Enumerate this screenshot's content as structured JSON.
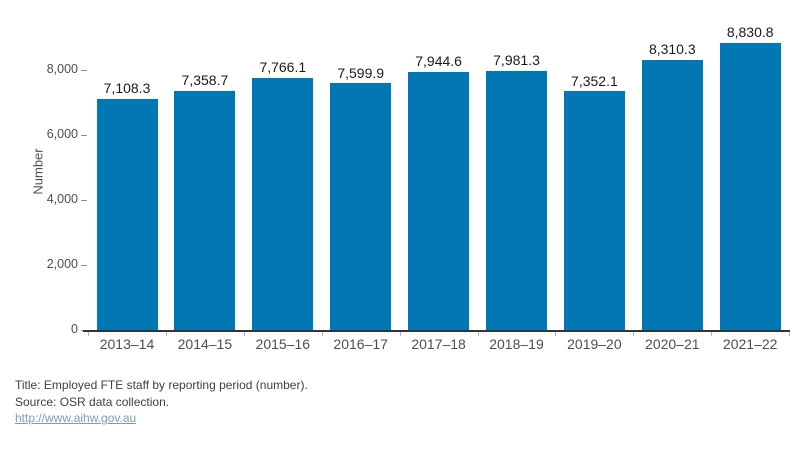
{
  "chart_data": {
    "type": "bar",
    "title": "Employed FTE staff by reporting period (number)",
    "categories": [
      "2013–14",
      "2014–15",
      "2015–16",
      "2016–17",
      "2017–18",
      "2018–19",
      "2019–20",
      "2020–21",
      "2021–22"
    ],
    "values": [
      7108.3,
      7358.7,
      7766.1,
      7599.9,
      7944.6,
      7981.3,
      7352.1,
      8310.3,
      8830.8
    ],
    "value_labels": [
      "7,108.3",
      "7,358.7",
      "7,766.1",
      "7,599.9",
      "7,944.6",
      "7,981.3",
      "7,352.1",
      "8,310.3",
      "8,830.8"
    ],
    "xlabel": "",
    "ylabel": "Number",
    "yticks": [
      0,
      2000,
      4000,
      6000,
      8000
    ],
    "ytick_labels": [
      "0",
      "2,000",
      "4,000",
      "6,000",
      "8,000"
    ],
    "ylim": [
      0,
      9400
    ],
    "grid": false,
    "legend": "none",
    "bar_color": "#0277b4"
  },
  "footer": {
    "title_note": "Title: Employed FTE staff by reporting period (number).",
    "source_note": "Source: OSR data collection.",
    "link_text": "http://www.aihw.gov.au"
  },
  "colors": {
    "bar": "#0277b4",
    "axis_text": "#4e4e4e",
    "value_text": "#1a1a1a",
    "footer_text": "#3f3f3f",
    "link": "#7a9cb4",
    "axis_line": "#333333",
    "tick_mark": "#8f8f8f",
    "cat_tick": "#b5b5b5"
  }
}
